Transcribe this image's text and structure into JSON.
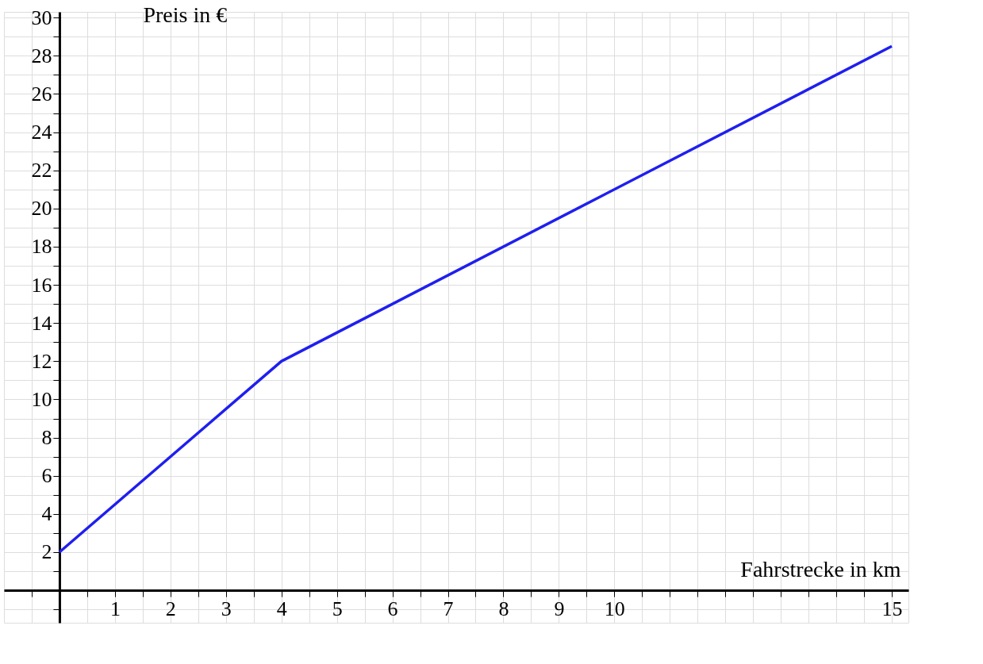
{
  "chart_data": {
    "type": "line",
    "xlabel": "Fahrstrecke in km",
    "ylabel": "Preis in €",
    "x": [
      0,
      4,
      15
    ],
    "series": [
      {
        "color": "#1f1fef",
        "values": [
          2,
          12,
          28.5
        ]
      }
    ],
    "xlim": [
      -1,
      15.3
    ],
    "ylim": [
      -1.7,
      30.3
    ],
    "xticks": [
      {
        "value": -0.5,
        "label": null
      },
      {
        "value": 0,
        "label": null
      },
      {
        "value": 0.5,
        "label": null
      },
      1,
      {
        "value": 1.5,
        "label": null
      },
      2,
      {
        "value": 2.5,
        "label": null
      },
      3,
      {
        "value": 3.5,
        "label": null
      },
      4,
      {
        "value": 4.5,
        "label": null
      },
      5,
      {
        "value": 5.5,
        "label": null
      },
      6,
      {
        "value": 6.5,
        "label": null
      },
      7,
      {
        "value": 7.5,
        "label": null
      },
      8,
      {
        "value": 8.5,
        "label": null
      },
      9,
      {
        "value": 9.5,
        "label": null
      },
      10,
      {
        "value": 10.5,
        "label": null
      },
      {
        "value": 11,
        "label": null
      },
      {
        "value": 11.5,
        "label": null
      },
      {
        "value": 12,
        "label": null
      },
      {
        "value": 12.5,
        "label": null
      },
      {
        "value": 13,
        "label": null
      },
      {
        "value": 13.5,
        "label": null
      },
      {
        "value": 14,
        "label": null
      },
      {
        "value": 14.5,
        "label": null
      },
      15
    ],
    "yticks": [
      {
        "value": -1,
        "label": null
      },
      {
        "value": 0,
        "label": null
      },
      {
        "value": 1,
        "label": null
      },
      2,
      {
        "value": 3,
        "label": null
      },
      4,
      {
        "value": 5,
        "label": null
      },
      6,
      {
        "value": 7,
        "label": null
      },
      8,
      {
        "value": 9,
        "label": null
      },
      10,
      {
        "value": 11,
        "label": null
      },
      12,
      {
        "value": 13,
        "label": null
      },
      14,
      {
        "value": 15,
        "label": null
      },
      16,
      {
        "value": 17,
        "label": null
      },
      18,
      {
        "value": 19,
        "label": null
      },
      20,
      {
        "value": 21,
        "label": null
      },
      22,
      {
        "value": 23,
        "label": null
      },
      24,
      {
        "value": 25,
        "label": null
      },
      26,
      {
        "value": 27,
        "label": null
      },
      28,
      {
        "value": 29,
        "label": null
      },
      30
    ],
    "grid": true,
    "marker": "none",
    "line_style": "solid"
  }
}
